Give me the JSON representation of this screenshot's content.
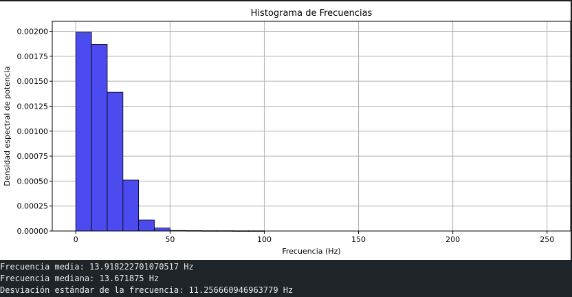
{
  "chart_data": {
    "type": "bar",
    "title": "Histograma de Frecuencias",
    "xlabel": "Frecuencia (Hz)",
    "ylabel": "Densidad espectral de potencia",
    "xlim": [
      -12.5,
      262.5
    ],
    "ylim": [
      0,
      0.0021
    ],
    "x_ticks": [
      0,
      50,
      100,
      150,
      200,
      250
    ],
    "y_ticks": [
      0,
      0.00025,
      0.0005,
      0.00075,
      0.001,
      0.00125,
      0.0015,
      0.00175,
      0.002
    ],
    "y_tick_labels": [
      "0.00000",
      "0.00025",
      "0.00050",
      "0.00075",
      "0.00100",
      "0.00125",
      "0.00150",
      "0.00175",
      "0.00200"
    ],
    "grid": true,
    "bar_color": "#4b4bef",
    "bar_edge_color": "#000000",
    "bins": [
      {
        "x0": 0,
        "x1": 8.33,
        "value": 0.00199
      },
      {
        "x0": 8.33,
        "x1": 16.67,
        "value": 0.00187
      },
      {
        "x0": 16.67,
        "x1": 25.0,
        "value": 0.00139
      },
      {
        "x0": 25.0,
        "x1": 33.33,
        "value": 0.00051
      },
      {
        "x0": 33.33,
        "x1": 41.67,
        "value": 0.00011
      },
      {
        "x0": 41.67,
        "x1": 50.0,
        "value": 3e-05
      },
      {
        "x0": 50.0,
        "x1": 58.33,
        "value": 5e-06
      },
      {
        "x0": 58.33,
        "x1": 66.67,
        "value": 4e-06
      },
      {
        "x0": 66.67,
        "x1": 75.0,
        "value": 3e-06
      },
      {
        "x0": 75.0,
        "x1": 83.33,
        "value": 3e-06
      },
      {
        "x0": 83.33,
        "x1": 91.67,
        "value": 2e-06
      },
      {
        "x0": 91.67,
        "x1": 100.0,
        "value": 2e-06
      }
    ]
  },
  "console": {
    "lines": [
      "Frecuencia media: 13.918222701070517 Hz",
      "Frecuencia mediana: 13.671875 Hz",
      "Desviación estándar de la frecuencia: 11.256660946963779 Hz"
    ]
  }
}
